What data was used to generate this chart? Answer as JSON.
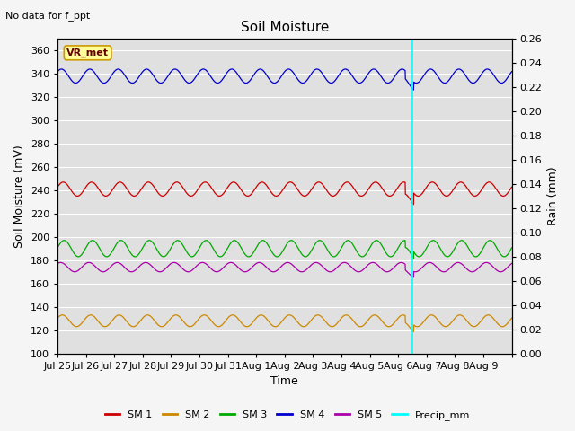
{
  "title": "Soil Moisture",
  "top_left_text": "No data for f_ppt",
  "ylabel_left": "Soil Moisture (mV)",
  "ylabel_right": "Rain (mm)",
  "xlabel": "Time",
  "ylim_left": [
    100,
    370
  ],
  "ylim_right": [
    0.0,
    0.26
  ],
  "yticks_left": [
    100,
    120,
    140,
    160,
    180,
    200,
    220,
    240,
    260,
    280,
    300,
    320,
    340,
    360
  ],
  "yticks_right": [
    0.0,
    0.02,
    0.04,
    0.06,
    0.08,
    0.1,
    0.12,
    0.14,
    0.16,
    0.18,
    0.2,
    0.22,
    0.24,
    0.26
  ],
  "background_color": "#e0e0e0",
  "grid_color": "#ffffff",
  "vr_met_label": "VR_met",
  "vr_met_box_color": "#ffff99",
  "vr_met_border_color": "#cc9900",
  "vline_x": 12.5,
  "vline_color": "#00ffff",
  "sm1_color": "#cc0000",
  "sm2_color": "#cc8800",
  "sm3_color": "#00aa00",
  "sm4_color": "#0000cc",
  "sm5_color": "#aa00aa",
  "sm1_base": 241,
  "sm1_amp": 6,
  "sm2_base": 128,
  "sm2_amp": 5,
  "sm3_base": 190,
  "sm3_amp": 7,
  "sm4_base": 338,
  "sm4_amp": 6,
  "sm5_base": 174,
  "sm5_amp": 4,
  "n_points": 2000,
  "tick_fontsize": 8,
  "label_fontsize": 9,
  "title_fontsize": 11
}
